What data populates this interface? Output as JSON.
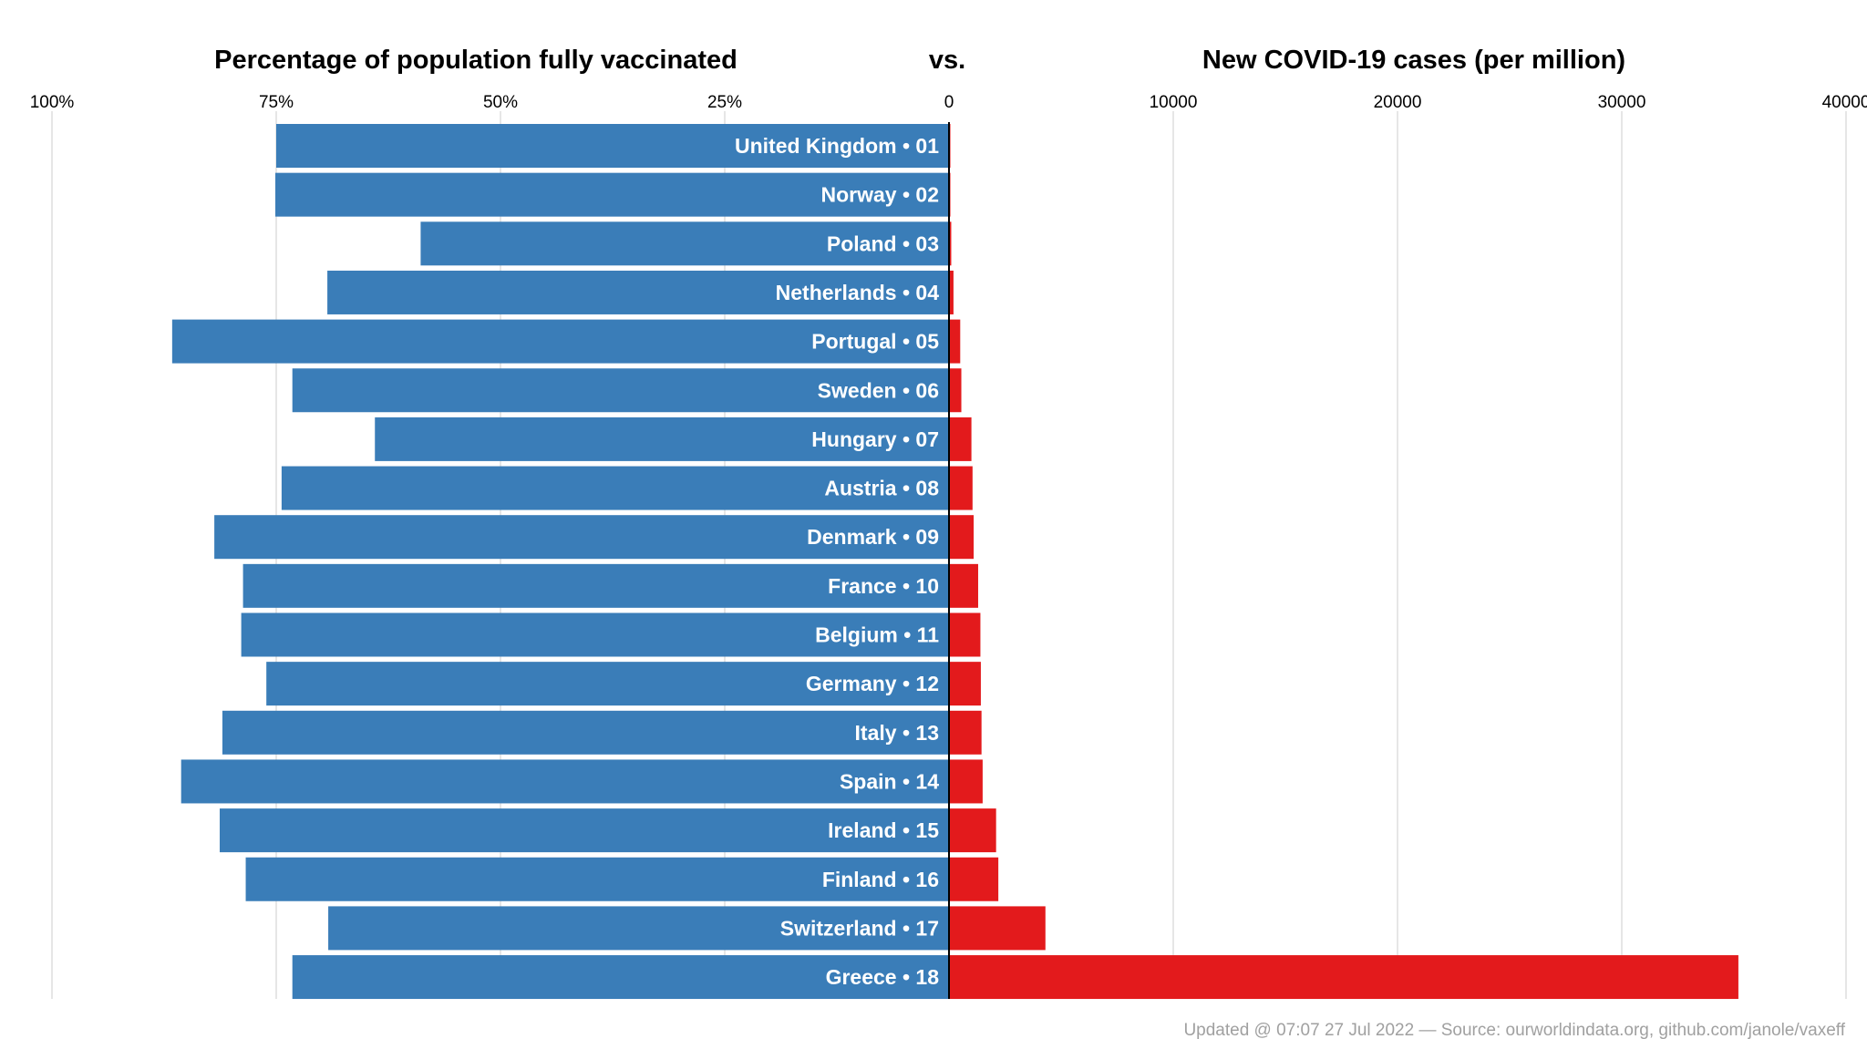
{
  "chart_data": {
    "type": "bar",
    "left_title": "Percentage of population fully vaccinated",
    "middle_title": "vs.",
    "right_title": "New COVID-19 cases (per million)",
    "left_ticks": [
      "100%",
      "75%",
      "50%",
      "25%"
    ],
    "zero_tick": "0",
    "right_ticks": [
      "10000",
      "20000",
      "30000",
      "40000"
    ],
    "left_xlim": [
      0,
      100
    ],
    "right_xlim": [
      0,
      40000
    ],
    "grid": true,
    "colors": {
      "vaccinated": "#3a7db8",
      "cases": "#e31a1c"
    },
    "categories": [
      "United Kingdom • 01",
      "Norway • 02",
      "Poland • 03",
      "Netherlands • 04",
      "Portugal • 05",
      "Sweden • 06",
      "Hungary • 07",
      "Austria • 08",
      "Denmark • 09",
      "France • 10",
      "Belgium • 11",
      "Germany • 12",
      "Italy • 13",
      "Spain • 14",
      "Ireland • 15",
      "Finland • 16",
      "Switzerland • 17",
      "Greece • 18"
    ],
    "series": [
      {
        "name": "Percentage of population fully vaccinated",
        "values": [
          75.0,
          75.1,
          58.9,
          69.3,
          86.6,
          73.2,
          64.0,
          74.4,
          81.9,
          78.7,
          78.9,
          76.1,
          81.0,
          85.6,
          81.3,
          78.4,
          69.2,
          73.2
        ]
      },
      {
        "name": "New COVID-19 cases (per million)",
        "values": [
          10,
          20,
          100,
          200,
          500,
          550,
          1000,
          1050,
          1100,
          1300,
          1400,
          1420,
          1450,
          1500,
          2100,
          2200,
          4300,
          35200
        ]
      }
    ]
  },
  "footer": "Updated @ 07:07 27 Jul 2022 — Source: ourworldindata.org, github.com/janole/vaxeff"
}
